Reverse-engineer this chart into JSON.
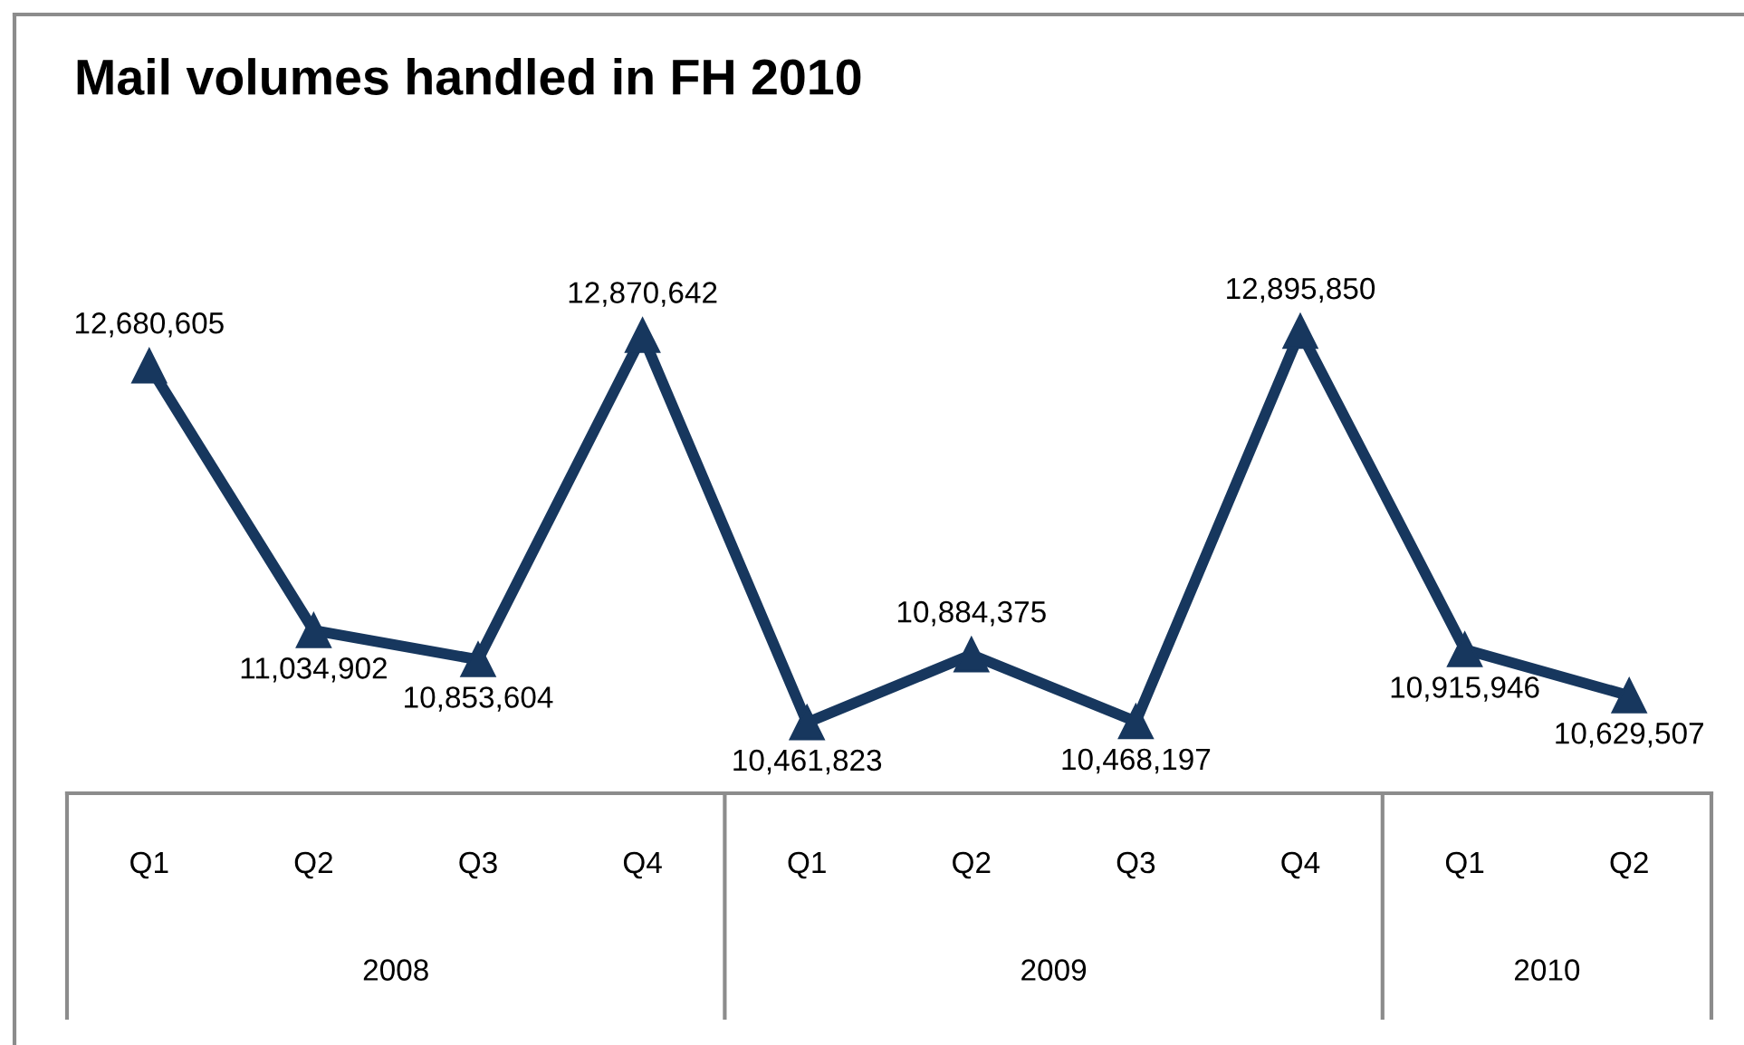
{
  "chart_data": {
    "type": "line",
    "title": "Mail volumes handled in FH 2010",
    "categories": [
      "Q1",
      "Q2",
      "Q3",
      "Q4",
      "Q1",
      "Q2",
      "Q3",
      "Q4",
      "Q1",
      "Q2"
    ],
    "series": [
      {
        "color": "#17375e",
        "values": [
          12680605,
          11034902,
          10853604,
          12870642,
          10461823,
          10884375,
          10468197,
          12895850,
          10915946,
          10629507
        ],
        "value_labels": [
          "12,680,605",
          "11,034,902",
          "10,853,604",
          "12,870,642",
          "10,461,823",
          "10,884,375",
          "10,468,197",
          "12,895,850",
          "10,915,946",
          "10,629,507"
        ]
      }
    ],
    "marker": "triangle",
    "line_style": "solid",
    "annotations": [
      "2008",
      "2009",
      "2010"
    ]
  }
}
